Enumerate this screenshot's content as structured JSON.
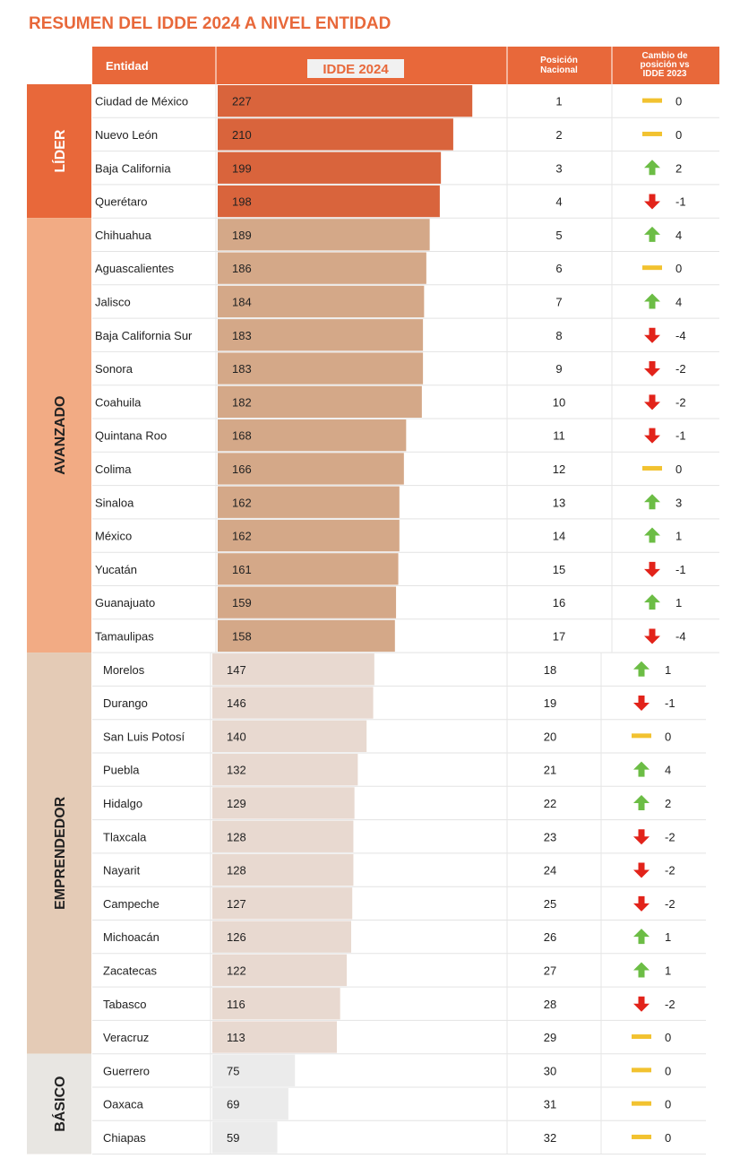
{
  "chart_data": {
    "type": "bar",
    "title": "RESUMEN DEL IDDE 2024 A NIVEL ENTIDAD",
    "headers": {
      "entity": "Entidad",
      "value": "IDDE 2024",
      "position": "Posición Nacional",
      "change": "Cambio de posición vs IDDE 2023"
    },
    "groups": [
      {
        "name": "LÍDER",
        "start": 0,
        "end": 3
      },
      {
        "name": "AVANZADO",
        "start": 4,
        "end": 16
      },
      {
        "name": "EMPRENDEDOR",
        "start": 17,
        "end": 28
      },
      {
        "name": "BÁSICO",
        "start": 29,
        "end": 31
      }
    ],
    "categories": [
      "Ciudad de México",
      "Nuevo León",
      "Baja California",
      "Querétaro",
      "Chihuahua",
      "Aguascalientes",
      "Jalisco",
      "Baja California Sur",
      "Sonora",
      "Coahuila",
      "Quintana Roo",
      "Colima",
      "Sinaloa",
      "México",
      "Yucatán",
      "Guanajuato",
      "Tamaulipas",
      "Morelos",
      "Durango",
      "San Luis Potosí",
      "Puebla",
      "Hidalgo",
      "Tlaxcala",
      "Nayarit",
      "Campeche",
      "Michoacán",
      "Zacatecas",
      "Tabasco",
      "Veracruz",
      "Guerrero",
      "Oaxaca",
      "Chiapas"
    ],
    "values": [
      227,
      210,
      199,
      198,
      189,
      186,
      184,
      183,
      183,
      182,
      168,
      166,
      162,
      162,
      161,
      159,
      158,
      147,
      146,
      140,
      132,
      129,
      128,
      128,
      127,
      126,
      122,
      116,
      113,
      75,
      69,
      59
    ],
    "positions": [
      1,
      2,
      3,
      4,
      5,
      6,
      7,
      8,
      9,
      10,
      11,
      12,
      13,
      14,
      15,
      16,
      17,
      18,
      19,
      20,
      21,
      22,
      23,
      24,
      25,
      26,
      27,
      28,
      29,
      30,
      31,
      32
    ],
    "changes": [
      0,
      0,
      2,
      -1,
      4,
      0,
      4,
      -4,
      -2,
      -2,
      -1,
      0,
      3,
      1,
      -1,
      1,
      -4,
      1,
      -1,
      0,
      4,
      2,
      -2,
      -2,
      -2,
      1,
      1,
      -2,
      0,
      0,
      0,
      0
    ],
    "colors": {
      "header": "#e8683a",
      "lider_label": "#e8683a",
      "lider_bar": "#d9643c",
      "avanzado_label": "#f2ab84",
      "avanzado_bar": "#d4a888",
      "emprendedor_label": "#e4cbb6",
      "emprendedor_bar": "#e8d9d0",
      "basico_label": "#e8e6e2",
      "basico_bar": "#ebebeb",
      "up": "#6cbd45",
      "down": "#e2231a",
      "same": "#f2c230"
    }
  }
}
